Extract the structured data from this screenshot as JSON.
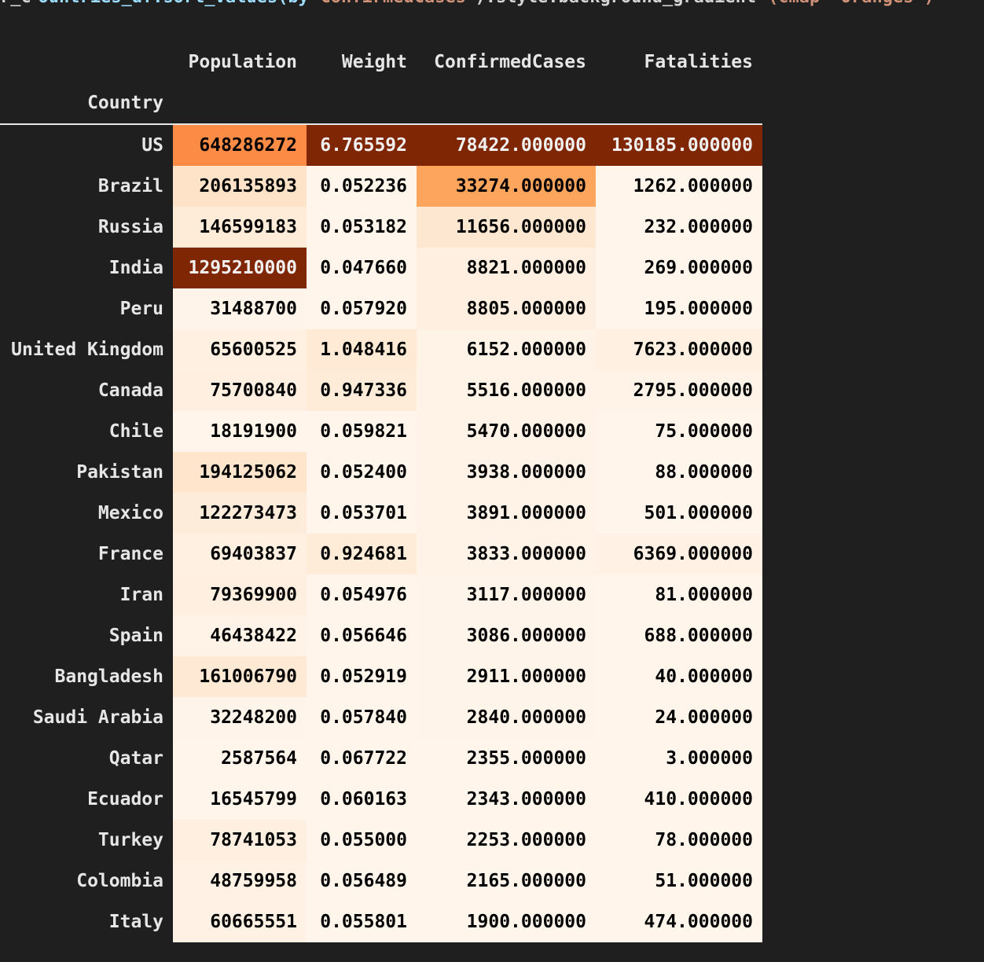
{
  "code_line_fragment": {
    "segments": [
      {
        "text": "r_c",
        "color": "#d4d4d4"
      },
      {
        "text": "ountries_df.sort_values(by",
        "color": "#9cdcfe"
      },
      {
        "text": "ConfirmedCases",
        "color": "#ce9178"
      },
      {
        "text": ").style.background_gradient",
        "color": "#d4d4d4"
      },
      {
        "text": "(cmap='Oranges')",
        "color": "#ce9178"
      }
    ]
  },
  "table": {
    "columns": [
      "Population",
      "Weight",
      "ConfirmedCases",
      "Fatalities"
    ],
    "index_name": "Country",
    "rows": [
      {
        "country": "US",
        "cells": [
          "648286272",
          "6.765592",
          "78422.000000",
          "130185.000000"
        ],
        "bg": [
          "#fc8b46",
          "#7f2704",
          "#7f2704",
          "#7f2704"
        ],
        "fg": [
          "#000000",
          "#f1f1f1",
          "#f1f1f1",
          "#f1f1f1"
        ]
      },
      {
        "country": "Brazil",
        "cells": [
          "206135893",
          "0.052236",
          "33274.000000",
          "1262.000000"
        ],
        "bg": [
          "#fee3c8",
          "#fff5eb",
          "#fda45d",
          "#fff5eb"
        ],
        "fg": [
          "#000000",
          "#000000",
          "#000000",
          "#000000"
        ]
      },
      {
        "country": "Russia",
        "cells": [
          "146599183",
          "0.053182",
          "11656.000000",
          "232.000000"
        ],
        "bg": [
          "#feebd8",
          "#fff5eb",
          "#fee7d1",
          "#fff5eb"
        ],
        "fg": [
          "#000000",
          "#000000",
          "#000000",
          "#000000"
        ]
      },
      {
        "country": "India",
        "cells": [
          "1295210000",
          "0.047660",
          "8821.000000",
          "269.000000"
        ],
        "bg": [
          "#7f2704",
          "#fff5eb",
          "#feefe1",
          "#fff5eb"
        ],
        "fg": [
          "#f1f1f1",
          "#000000",
          "#000000",
          "#000000"
        ]
      },
      {
        "country": "Peru",
        "cells": [
          "31488700",
          "0.057920",
          "8805.000000",
          "195.000000"
        ],
        "bg": [
          "#fff4e9",
          "#fff5eb",
          "#feefe1",
          "#fff5eb"
        ],
        "fg": [
          "#000000",
          "#000000",
          "#000000",
          "#000000"
        ]
      },
      {
        "country": "United Kingdom",
        "cells": [
          "65600525",
          "1.048416",
          "6152.000000",
          "7623.000000"
        ],
        "bg": [
          "#fff0e2",
          "#feead5",
          "#fff2e6",
          "#fff0e2"
        ],
        "fg": [
          "#000000",
          "#000000",
          "#000000",
          "#000000"
        ]
      },
      {
        "country": "Canada",
        "cells": [
          "75700840",
          "0.947336",
          "5516.000000",
          "2795.000000"
        ],
        "bg": [
          "#feefe0",
          "#feebd8",
          "#fff2e6",
          "#fff3e7"
        ],
        "fg": [
          "#000000",
          "#000000",
          "#000000",
          "#000000"
        ]
      },
      {
        "country": "Chile",
        "cells": [
          "18191900",
          "0.059821",
          "5470.000000",
          "75.000000"
        ],
        "bg": [
          "#fff5ea",
          "#fff5eb",
          "#fff2e6",
          "#fff5eb"
        ],
        "fg": [
          "#000000",
          "#000000",
          "#000000",
          "#000000"
        ]
      },
      {
        "country": "Pakistan",
        "cells": [
          "194125062",
          "0.052400",
          "3938.000000",
          "88.000000"
        ],
        "bg": [
          "#fee5cb",
          "#fff5eb",
          "#fff3e8",
          "#fff5eb"
        ],
        "fg": [
          "#000000",
          "#000000",
          "#000000",
          "#000000"
        ]
      },
      {
        "country": "Mexico",
        "cells": [
          "122273473",
          "0.053701",
          "3891.000000",
          "501.000000"
        ],
        "bg": [
          "#feecda",
          "#fff5eb",
          "#fff3e8",
          "#fff5eb"
        ],
        "fg": [
          "#000000",
          "#000000",
          "#000000",
          "#000000"
        ]
      },
      {
        "country": "France",
        "cells": [
          "69403837",
          "0.924681",
          "3833.000000",
          "6369.000000"
        ],
        "bg": [
          "#fff0e2",
          "#feebd8",
          "#fff3e8",
          "#fff1e4"
        ],
        "fg": [
          "#000000",
          "#000000",
          "#000000",
          "#000000"
        ]
      },
      {
        "country": "Iran",
        "cells": [
          "79369900",
          "0.054976",
          "3117.000000",
          "81.000000"
        ],
        "bg": [
          "#ffefe0",
          "#fff5eb",
          "#fff4e9",
          "#fff5eb"
        ],
        "fg": [
          "#000000",
          "#000000",
          "#000000",
          "#000000"
        ]
      },
      {
        "country": "Spain",
        "cells": [
          "46438422",
          "0.056646",
          "3086.000000",
          "688.000000"
        ],
        "bg": [
          "#fff2e6",
          "#fff5eb",
          "#fff4e9",
          "#fff5eb"
        ],
        "fg": [
          "#000000",
          "#000000",
          "#000000",
          "#000000"
        ]
      },
      {
        "country": "Bangladesh",
        "cells": [
          "161006790",
          "0.052919",
          "2911.000000",
          "40.000000"
        ],
        "bg": [
          "#fee9d4",
          "#fff5eb",
          "#fff4e9",
          "#fff5eb"
        ],
        "fg": [
          "#000000",
          "#000000",
          "#000000",
          "#000000"
        ]
      },
      {
        "country": "Saudi Arabia",
        "cells": [
          "32248200",
          "0.057840",
          "2840.000000",
          "24.000000"
        ],
        "bg": [
          "#fff4e9",
          "#fff5eb",
          "#fff4e9",
          "#fff5eb"
        ],
        "fg": [
          "#000000",
          "#000000",
          "#000000",
          "#000000"
        ]
      },
      {
        "country": "Qatar",
        "cells": [
          "2587564",
          "0.067722",
          "2355.000000",
          "3.000000"
        ],
        "bg": [
          "#fff5eb",
          "#fff5eb",
          "#fff5ea",
          "#fff5eb"
        ],
        "fg": [
          "#000000",
          "#000000",
          "#000000",
          "#000000"
        ]
      },
      {
        "country": "Ecuador",
        "cells": [
          "16545799",
          "0.060163",
          "2343.000000",
          "410.000000"
        ],
        "bg": [
          "#fff5ea",
          "#fff5eb",
          "#fff5ea",
          "#fff5eb"
        ],
        "fg": [
          "#000000",
          "#000000",
          "#000000",
          "#000000"
        ]
      },
      {
        "country": "Turkey",
        "cells": [
          "78741053",
          "0.055000",
          "2253.000000",
          "78.000000"
        ],
        "bg": [
          "#ffefe0",
          "#fff5eb",
          "#fff5ea",
          "#fff5eb"
        ],
        "fg": [
          "#000000",
          "#000000",
          "#000000",
          "#000000"
        ]
      },
      {
        "country": "Colombia",
        "cells": [
          "48759958",
          "0.056489",
          "2165.000000",
          "51.000000"
        ],
        "bg": [
          "#fff2e5",
          "#fff5eb",
          "#fff5ea",
          "#fff5eb"
        ],
        "fg": [
          "#000000",
          "#000000",
          "#000000",
          "#000000"
        ]
      },
      {
        "country": "Italy",
        "cells": [
          "60665551",
          "0.055801",
          "1900.000000",
          "474.000000"
        ],
        "bg": [
          "#fff1e3",
          "#fff5eb",
          "#fff5eb",
          "#fff5eb"
        ],
        "fg": [
          "#000000",
          "#000000",
          "#000000",
          "#000000"
        ]
      }
    ]
  }
}
